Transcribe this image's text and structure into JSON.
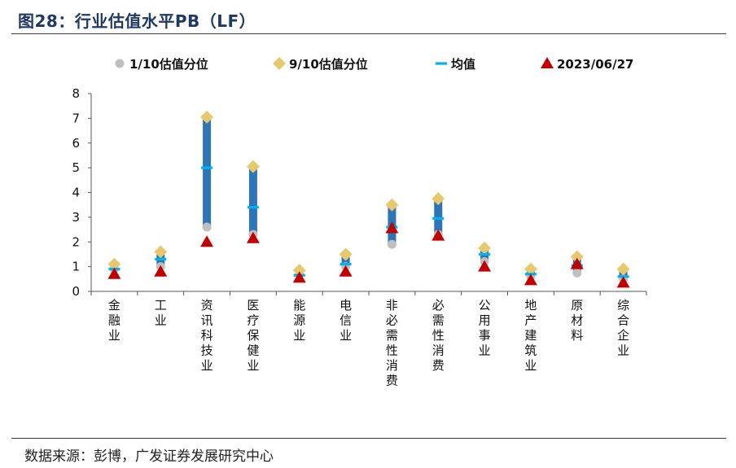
{
  "figure": {
    "title": "图28：行业估值水平PB（LF）",
    "source": "数据来源：彭博，广发证券发展研究中心"
  },
  "colors": {
    "range_bar": "#2e75b6",
    "p10": "#bfbfbf",
    "p90": "#e6c86e",
    "mean": "#00b0f0",
    "current": "#c00000"
  },
  "chart_data": {
    "type": "range-dot",
    "title": "行业估值水平PB（LF）",
    "xlabel": "",
    "ylabel": "",
    "ylim": [
      0,
      8
    ],
    "yticks": [
      0,
      1,
      2,
      3,
      4,
      5,
      6,
      7,
      8
    ],
    "grid": false,
    "legend_position": "top",
    "categories": [
      "金融业",
      "工业",
      "资讯科技业",
      "医疗保健业",
      "能源业",
      "电信业",
      "非必需性消费",
      "必需性消费",
      "公用事业",
      "地产建筑业",
      "原材料",
      "综合企业"
    ],
    "series": [
      {
        "name": "1/10估值分位",
        "marker": "circle",
        "values": [
          0.9,
          1.0,
          2.6,
          2.3,
          0.7,
          1.0,
          1.9,
          2.3,
          1.2,
          0.6,
          0.75,
          0.5
        ]
      },
      {
        "name": "9/10估值分位",
        "marker": "diamond",
        "values": [
          1.1,
          1.6,
          7.05,
          5.05,
          0.85,
          1.5,
          3.5,
          3.75,
          1.75,
          0.9,
          1.4,
          0.9
        ]
      },
      {
        "name": "均值",
        "marker": "dash",
        "values": [
          0.9,
          1.3,
          5.0,
          3.4,
          0.65,
          1.1,
          2.6,
          2.95,
          1.5,
          0.7,
          1.05,
          0.6
        ]
      },
      {
        "name": "2023/06/27",
        "marker": "triangle",
        "values": [
          0.7,
          0.8,
          2.0,
          2.15,
          0.55,
          0.8,
          2.55,
          2.25,
          1.0,
          0.45,
          1.1,
          0.35
        ]
      }
    ]
  }
}
